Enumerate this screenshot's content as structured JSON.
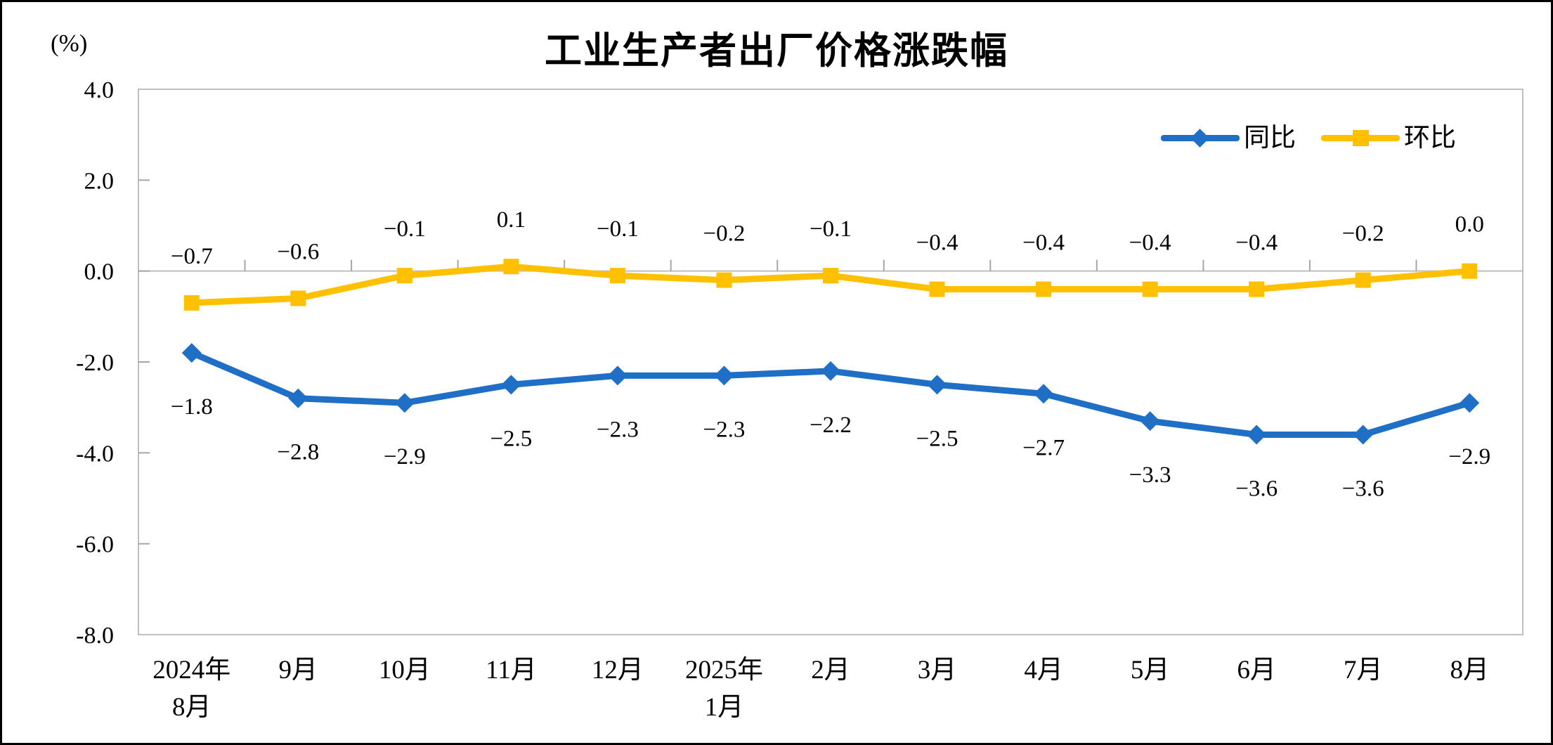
{
  "chart_data": {
    "type": "line",
    "title": "工业生产者出厂价格涨跌幅",
    "unit_label": "(%)",
    "categories": [
      [
        "2024年",
        "8月"
      ],
      [
        "9月"
      ],
      [
        "10月"
      ],
      [
        "11月"
      ],
      [
        "12月"
      ],
      [
        "2025年",
        "1月"
      ],
      [
        "2月"
      ],
      [
        "3月"
      ],
      [
        "4月"
      ],
      [
        "5月"
      ],
      [
        "6月"
      ],
      [
        "7月"
      ],
      [
        "8月"
      ]
    ],
    "series": [
      {
        "name": "同比",
        "color": "#1F6FC6",
        "marker": "diamond",
        "label_position": "below",
        "values": [
          -1.8,
          -2.8,
          -2.9,
          -2.5,
          -2.3,
          -2.3,
          -2.2,
          -2.5,
          -2.7,
          -3.3,
          -3.6,
          -3.6,
          -2.9
        ],
        "labels": [
          "−1.8",
          "−2.8",
          "−2.9",
          "−2.5",
          "−2.3",
          "−2.3",
          "−2.2",
          "−2.5",
          "−2.7",
          "−3.3",
          "−3.6",
          "−3.6",
          "−2.9"
        ]
      },
      {
        "name": "环比",
        "color": "#FFC000",
        "marker": "square",
        "label_position": "above",
        "values": [
          -0.7,
          -0.6,
          -0.1,
          0.1,
          -0.1,
          -0.2,
          -0.1,
          -0.4,
          -0.4,
          -0.4,
          -0.4,
          -0.2,
          0.0
        ],
        "labels": [
          "−0.7",
          "−0.6",
          "−0.1",
          "0.1",
          "−0.1",
          "−0.2",
          "−0.1",
          "−0.4",
          "−0.4",
          "−0.4",
          "−0.4",
          "−0.2",
          "0.0"
        ]
      }
    ],
    "ylim": [
      -8,
      4
    ],
    "ytick_step": 2,
    "ytick_labels": [
      "4.0",
      "2.0",
      "0.0",
      "-2.0",
      "-4.0",
      "-6.0",
      "-8.0"
    ],
    "grid": "zero-line-only",
    "legend_position": "top-right",
    "axis_color": "#BFBFBF",
    "tick_color": "#A6A6A6",
    "text_color": "#000000"
  }
}
